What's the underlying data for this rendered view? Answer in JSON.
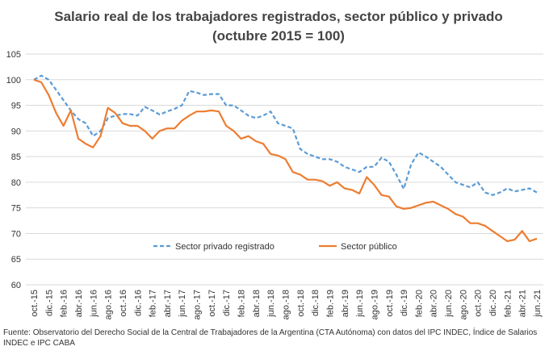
{
  "chart_data": {
    "type": "line",
    "title": "Salario real de los trabajadores registrados, sector público y privado",
    "subtitle": "(octubre 2015 = 100)",
    "source": "Fuente: Observatorio del Derecho Social de la Central de Trabajadores de la Argentina (CTA Autónoma) con datos del IPC INDEC, Índice de Salarios INDEC e IPC CABA",
    "categories": [
      "oct.-15",
      null,
      "dic.-15",
      null,
      "feb.-16",
      null,
      "abr.-16",
      null,
      "jun.-16",
      null,
      "ago.-16",
      null,
      "oct.-16",
      null,
      "dic.-16",
      null,
      "feb.-17",
      null,
      "abr.-17",
      null,
      "jun.-17",
      null,
      "ago.-17",
      null,
      "oct.-17",
      null,
      "dic.-17",
      null,
      "feb.-18",
      null,
      "abr.-18",
      null,
      "jun.-18",
      null,
      "ago.-18",
      null,
      "oct.-18",
      null,
      "dic.-18",
      null,
      "feb.-19",
      null,
      "abr.-19",
      null,
      "jun.-19",
      null,
      "ago.-19",
      null,
      "oct.-19",
      null,
      "dic.-19",
      null,
      "feb.-20",
      null,
      "abr.-20",
      null,
      "jun.-20",
      null,
      "ago.-20",
      null,
      "oct.-20",
      null,
      "dic.-20",
      null,
      "feb.-21",
      null,
      "abr.-21",
      null,
      "jun.-21"
    ],
    "series": [
      {
        "name": "Sector privado registrado",
        "color": "#5b9bd5",
        "dashed": true,
        "values": [
          100,
          100.8,
          100,
          98,
          96,
          94,
          92.3,
          91.5,
          89,
          90,
          92.5,
          93,
          93.3,
          93.3,
          93,
          94.7,
          94,
          93.2,
          93.8,
          94.3,
          95,
          97.8,
          97.5,
          97,
          97.2,
          97.2,
          95,
          95,
          94,
          93,
          92.5,
          93,
          93.8,
          91.5,
          91,
          90.5,
          86.5,
          85.5,
          85,
          84.5,
          84.5,
          84,
          83,
          82.5,
          82,
          83,
          83,
          84.8,
          84,
          81.5,
          78.7,
          83.5,
          85.8,
          85,
          84,
          83,
          81.5,
          80,
          79.5,
          79,
          80,
          78,
          77.5,
          78,
          78.8,
          78.2,
          78.5,
          78.8,
          78
        ]
      },
      {
        "name": "Sector público",
        "color": "#ed7d31",
        "dashed": false,
        "values": [
          100,
          99.5,
          97,
          93.5,
          91,
          94,
          88.5,
          87.5,
          86.8,
          89,
          94.5,
          93.5,
          91.5,
          91,
          91,
          90,
          88.5,
          90,
          90.5,
          90.5,
          92,
          93,
          93.8,
          93.8,
          94,
          93.8,
          91,
          90,
          88.5,
          89,
          88,
          87.5,
          85.5,
          85.2,
          84.5,
          82,
          81.5,
          80.5,
          80.5,
          80.2,
          79.3,
          80,
          78.8,
          78.5,
          77.8,
          81,
          79.5,
          77.5,
          77.2,
          75.3,
          74.8,
          75,
          75.5,
          76,
          76.2,
          75.5,
          74.8,
          73.8,
          73.3,
          72,
          72,
          71.5,
          70.5,
          69.5,
          68.5,
          68.8,
          70.5,
          68.5,
          69
        ]
      }
    ],
    "ylim": [
      60,
      105
    ],
    "yticks": [
      60,
      65,
      70,
      75,
      80,
      85,
      90,
      95,
      100,
      105
    ],
    "grid": true
  }
}
